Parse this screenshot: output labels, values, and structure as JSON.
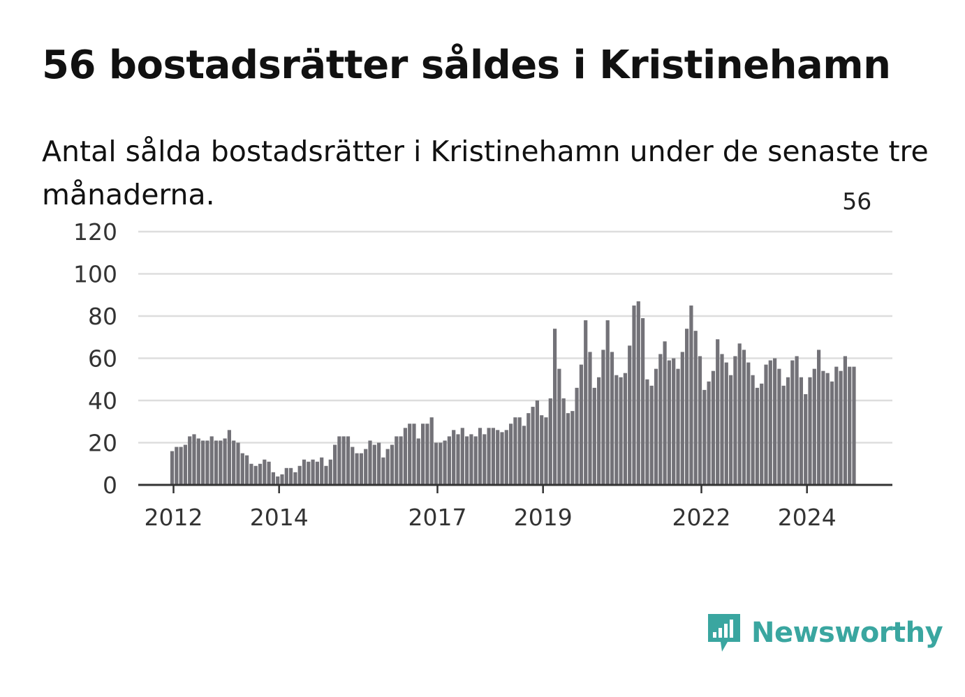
{
  "title": "56 bostadsrätter såldes i Kristinehamn",
  "subtitle": "Antal sålda bostadsrätter i Kristinehamn under de senaste tre månaderna.",
  "brand": {
    "name": "Newsworthy",
    "color": "#3aa6a0",
    "icon": "newsworthy-chart-icon"
  },
  "colors": {
    "bar": "#737278",
    "highlight": "#179c93",
    "grid": "#dddddd",
    "axis": "#333333"
  },
  "chart_data": {
    "type": "bar",
    "title": "56 bostadsrätter såldes i Kristinehamn",
    "xlabel": "",
    "ylabel": "",
    "ylim": [
      0,
      120
    ],
    "yticks": [
      0,
      20,
      40,
      60,
      80,
      100,
      120
    ],
    "xticks": [
      {
        "label": "2012",
        "index": 0
      },
      {
        "label": "2014",
        "index": 24
      },
      {
        "label": "2017",
        "index": 60
      },
      {
        "label": "2019",
        "index": 84
      },
      {
        "label": "2022",
        "index": 120
      },
      {
        "label": "2024",
        "index": 144
      }
    ],
    "start": "2012-01",
    "grid": true,
    "legend": "none",
    "highlight_index": 156,
    "annotation": {
      "text": "56",
      "index": 156
    },
    "values": [
      16,
      18,
      18,
      19,
      23,
      24,
      22,
      21,
      21,
      23,
      21,
      21,
      22,
      26,
      21,
      20,
      15,
      14,
      10,
      9,
      10,
      12,
      11,
      6,
      4,
      5,
      8,
      8,
      6,
      9,
      12,
      11,
      12,
      11,
      13,
      9,
      12,
      19,
      23,
      23,
      23,
      18,
      15,
      15,
      17,
      21,
      19,
      20,
      13,
      17,
      19,
      23,
      23,
      27,
      29,
      29,
      22,
      29,
      29,
      32,
      20,
      20,
      21,
      23,
      26,
      24,
      27,
      23,
      24,
      23,
      27,
      24,
      27,
      27,
      26,
      25,
      26,
      29,
      32,
      32,
      28,
      34,
      37,
      40,
      33,
      32,
      41,
      74,
      55,
      41,
      34,
      35,
      46,
      57,
      78,
      63,
      46,
      51,
      64,
      78,
      63,
      52,
      51,
      53,
      66,
      85,
      87,
      79,
      50,
      47,
      55,
      62,
      68,
      59,
      60,
      55,
      63,
      74,
      85,
      73,
      61,
      45,
      49,
      54,
      69,
      62,
      58,
      52,
      61,
      67,
      64,
      58,
      52,
      46,
      48,
      57,
      59,
      60,
      55,
      47,
      51,
      59,
      61,
      51,
      43,
      51,
      55,
      64,
      54,
      53,
      49,
      56,
      54,
      61,
      56,
      56
    ]
  }
}
